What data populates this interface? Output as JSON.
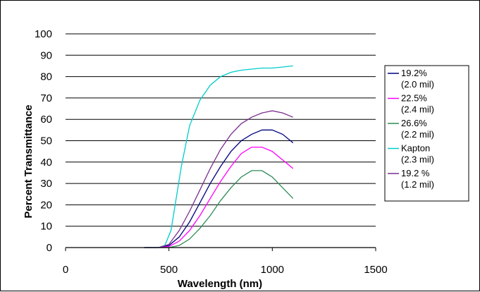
{
  "chart_data": {
    "type": "line",
    "title": "",
    "xlabel": "Wavelength (nm)",
    "ylabel": "Percent Transmittance",
    "xlim": [
      0,
      1500
    ],
    "ylim": [
      0,
      100
    ],
    "x_ticks": [
      0,
      500,
      1000,
      1500
    ],
    "y_ticks": [
      0,
      10,
      20,
      30,
      40,
      50,
      60,
      70,
      80,
      90,
      100
    ],
    "grid": "horizontal",
    "legend_position": "right",
    "series": [
      {
        "name": "19.2% (2.0 mil)",
        "legend_lines": [
          "19.2%",
          "(2.0 mil)"
        ],
        "color": "#000080",
        "x": [
          380,
          450,
          500,
          550,
          600,
          650,
          700,
          750,
          800,
          850,
          900,
          950,
          1000,
          1050,
          1100
        ],
        "y": [
          0,
          0,
          1,
          5,
          12,
          21,
          30,
          38,
          45,
          50,
          53,
          55,
          55,
          53,
          49
        ]
      },
      {
        "name": "22.5% (2.4 mil)",
        "legend_lines": [
          "22.5%",
          "(2.4 mil)"
        ],
        "color": "#ff00ff",
        "x": [
          380,
          450,
          500,
          550,
          600,
          650,
          700,
          750,
          800,
          850,
          900,
          950,
          1000,
          1050,
          1100
        ],
        "y": [
          0,
          0,
          0.5,
          3,
          8,
          15,
          23,
          31,
          38,
          44,
          47,
          47,
          45,
          41,
          37
        ]
      },
      {
        "name": "26.6% (2.2 mil)",
        "legend_lines": [
          "26.6%",
          "(2.2 mil)"
        ],
        "color": "#2e8b57",
        "x": [
          380,
          450,
          500,
          550,
          600,
          650,
          700,
          750,
          800,
          850,
          900,
          950,
          1000,
          1050,
          1100
        ],
        "y": [
          0,
          0,
          0,
          1,
          4,
          9,
          15,
          22,
          28,
          33,
          36,
          36,
          33,
          28,
          23
        ]
      },
      {
        "name": "Kapton (2.3 mil)",
        "legend_lines": [
          "Kapton",
          "(2.3 mil)"
        ],
        "color": "#00cccc",
        "x": [
          380,
          450,
          480,
          510,
          530,
          560,
          600,
          650,
          700,
          750,
          800,
          850,
          900,
          950,
          1000,
          1050,
          1100
        ],
        "y": [
          0,
          0,
          1,
          8,
          20,
          38,
          57,
          69,
          76,
          80,
          82,
          83,
          83.5,
          84,
          84,
          84.5,
          85
        ]
      },
      {
        "name": "19.2 % (1.2 mil)",
        "legend_lines": [
          "19.2 %",
          "(1.2 mil)"
        ],
        "color": "#7b2d8e",
        "x": [
          380,
          450,
          500,
          550,
          600,
          650,
          700,
          750,
          800,
          850,
          900,
          950,
          1000,
          1050,
          1100
        ],
        "y": [
          0,
          0,
          1.5,
          8,
          17,
          27,
          37,
          46,
          53,
          58,
          61,
          63,
          64,
          63,
          61
        ]
      }
    ]
  }
}
